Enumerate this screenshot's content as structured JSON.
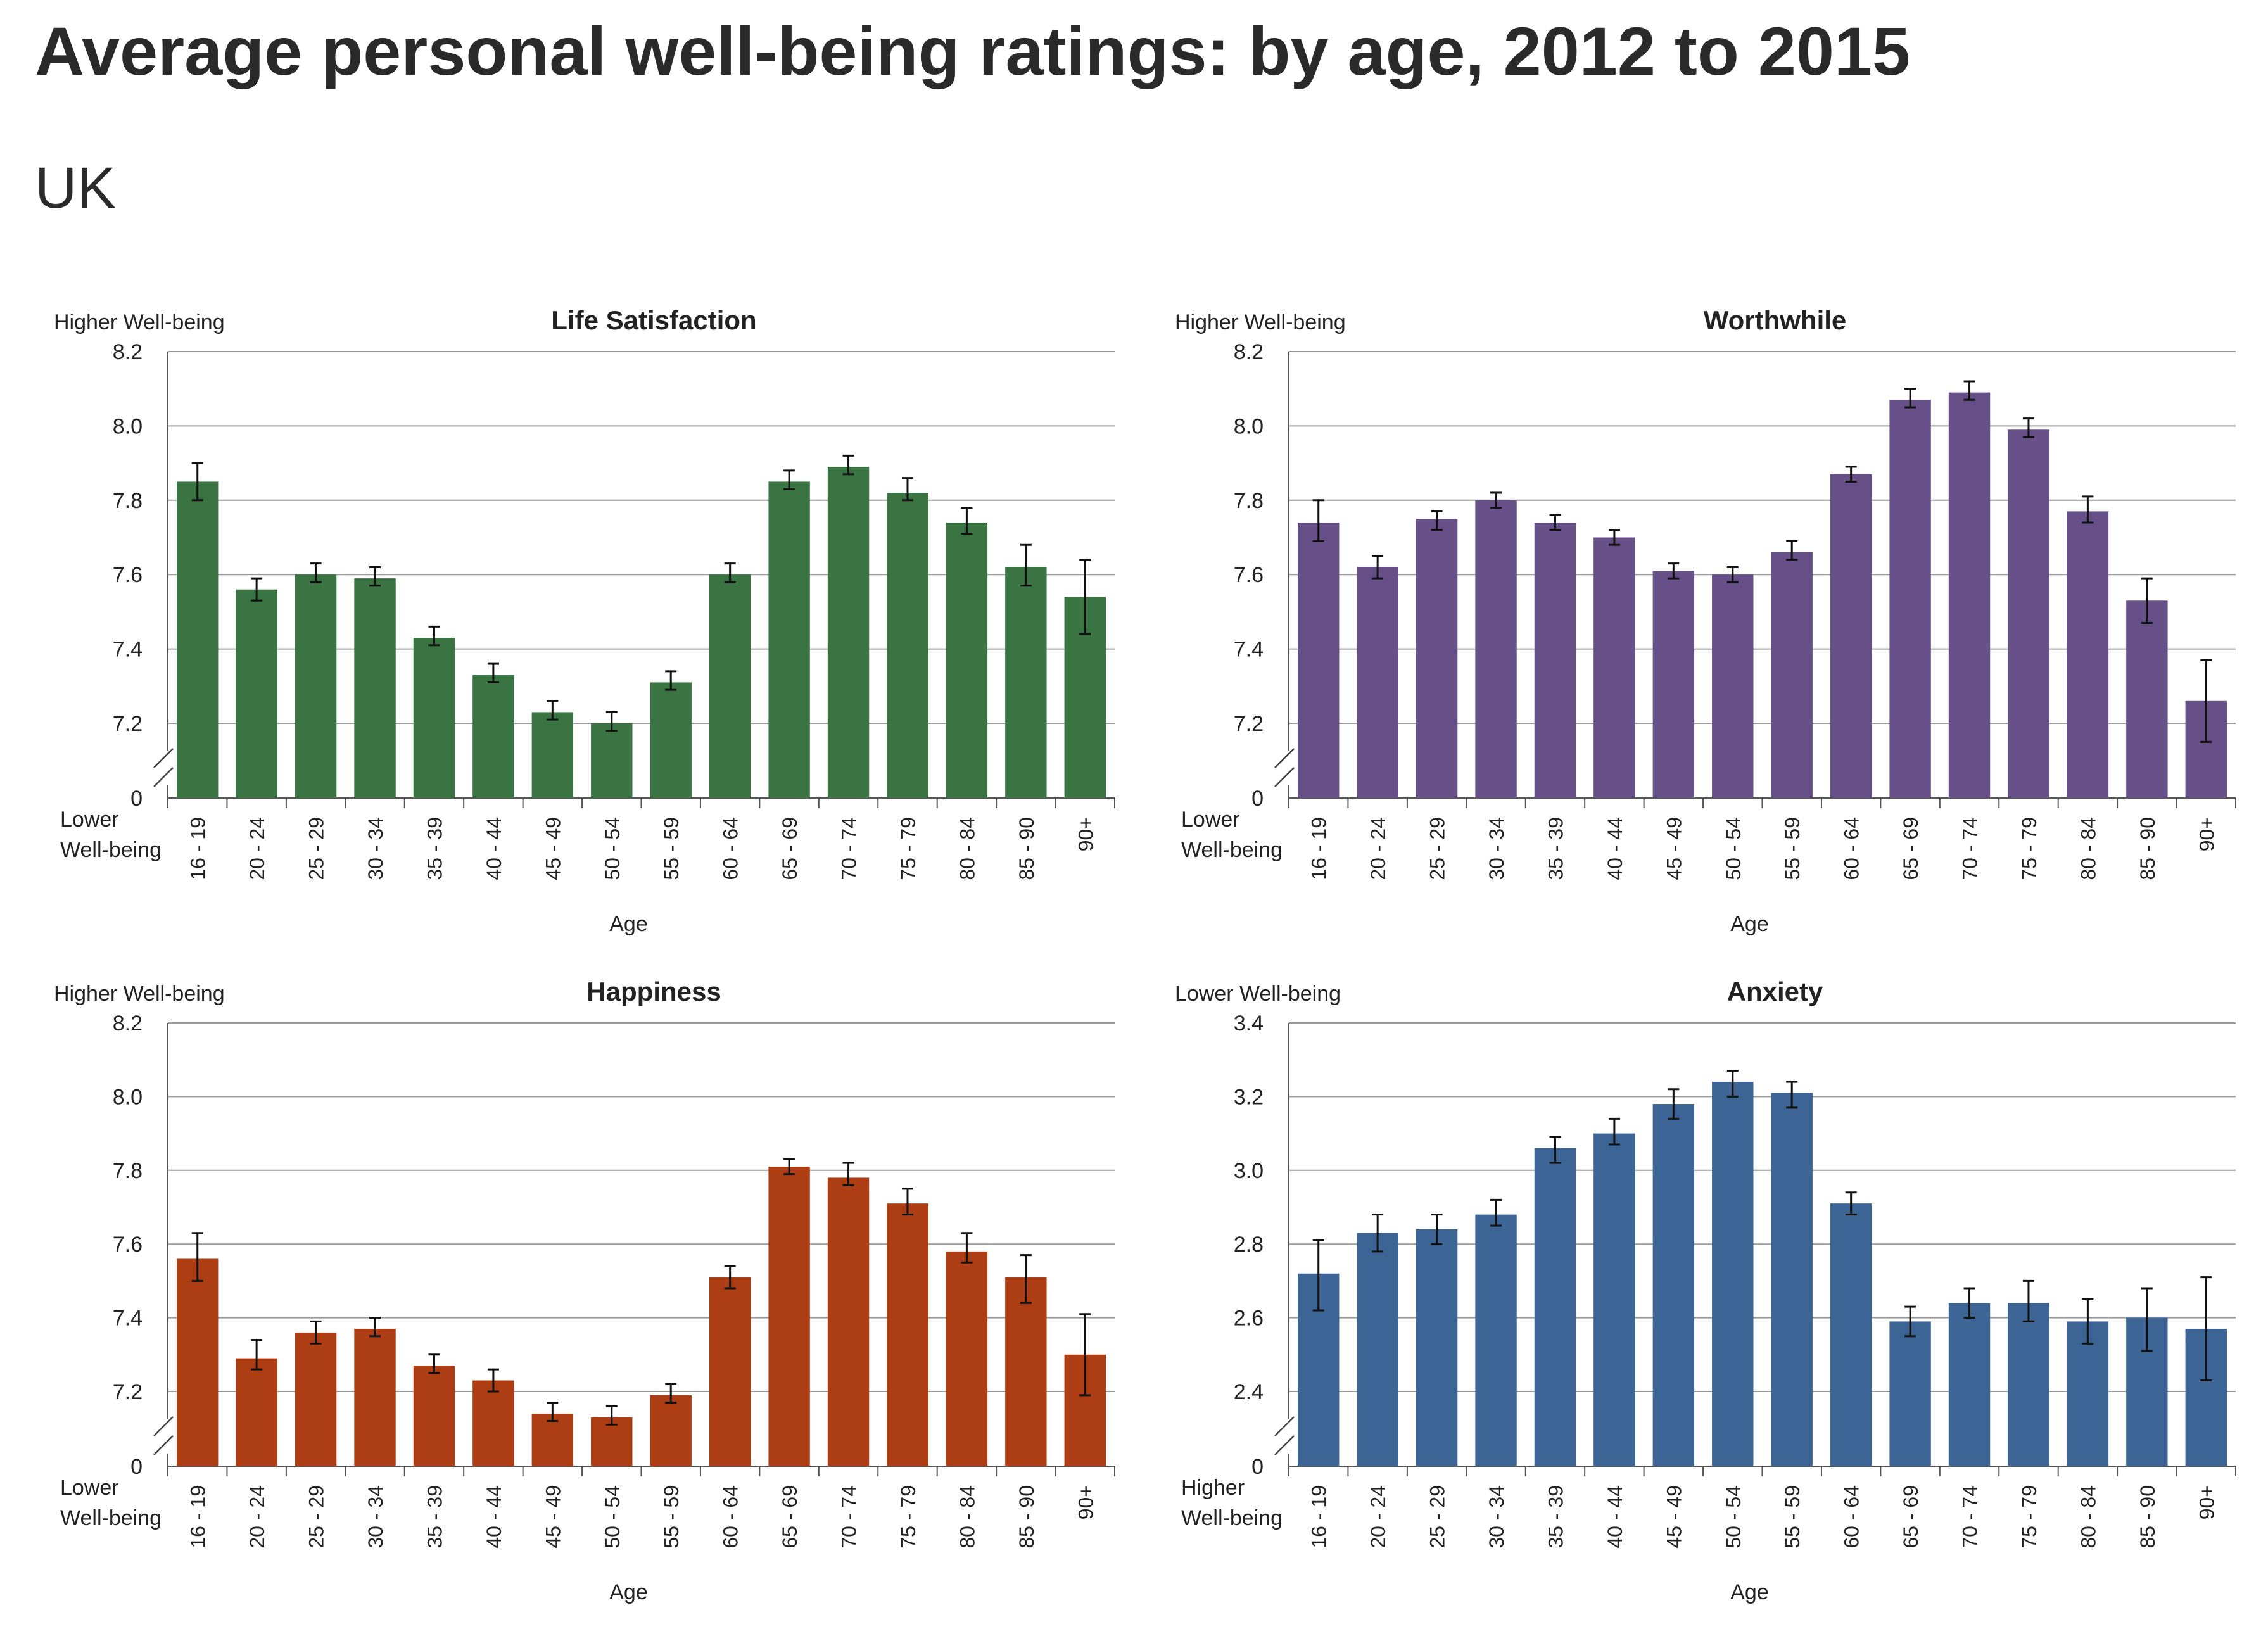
{
  "title": "Average personal well-being ratings: by age, 2012 to 2015",
  "subtitle": "UK",
  "chart_data": [
    {
      "type": "bar",
      "title": "Life Satisfaction",
      "color": "#3a7443",
      "top_label": "Higher Well-being",
      "bottom_label": [
        "Lower",
        "Well-being"
      ],
      "xlabel": "Age",
      "ylim": [
        7.0,
        8.2
      ],
      "yticks": [
        "8.2",
        "8.0",
        "7.8",
        "7.6",
        "7.4",
        "7.2",
        "0"
      ],
      "axis_break": true,
      "categories": [
        "16 - 19",
        "20 - 24",
        "25 - 29",
        "30 - 34",
        "35 - 39",
        "40 - 44",
        "45 - 49",
        "50 - 54",
        "55 - 59",
        "60 - 64",
        "65 - 69",
        "70 - 74",
        "75 - 79",
        "80 - 84",
        "85 - 90",
        "90+"
      ],
      "values": [
        7.85,
        7.56,
        7.6,
        7.59,
        7.43,
        7.33,
        7.23,
        7.2,
        7.31,
        7.6,
        7.85,
        7.89,
        7.82,
        7.74,
        7.62,
        7.54
      ],
      "error_low": [
        7.8,
        7.53,
        7.58,
        7.57,
        7.41,
        7.31,
        7.21,
        7.18,
        7.29,
        7.58,
        7.83,
        7.87,
        7.8,
        7.71,
        7.57,
        7.44
      ],
      "error_high": [
        7.9,
        7.59,
        7.63,
        7.62,
        7.46,
        7.36,
        7.26,
        7.23,
        7.34,
        7.63,
        7.88,
        7.92,
        7.86,
        7.78,
        7.68,
        7.64
      ]
    },
    {
      "type": "bar",
      "title": "Worthwhile",
      "color": "#674f88",
      "top_label": "Higher Well-being",
      "bottom_label": [
        "Lower",
        "Well-being"
      ],
      "xlabel": "Age",
      "ylim": [
        7.0,
        8.2
      ],
      "yticks": [
        "8.2",
        "8.0",
        "7.8",
        "7.6",
        "7.4",
        "7.2",
        "0"
      ],
      "axis_break": true,
      "categories": [
        "16 - 19",
        "20 - 24",
        "25 - 29",
        "30 - 34",
        "35 - 39",
        "40 - 44",
        "45 - 49",
        "50 - 54",
        "55 - 59",
        "60 - 64",
        "65 - 69",
        "70 - 74",
        "75 - 79",
        "80 - 84",
        "85 - 90",
        "90+"
      ],
      "values": [
        7.74,
        7.62,
        7.75,
        7.8,
        7.74,
        7.7,
        7.61,
        7.6,
        7.66,
        7.87,
        8.07,
        8.09,
        7.99,
        7.77,
        7.53,
        7.26
      ],
      "error_low": [
        7.69,
        7.59,
        7.72,
        7.78,
        7.72,
        7.68,
        7.59,
        7.58,
        7.64,
        7.85,
        8.05,
        8.07,
        7.97,
        7.74,
        7.47,
        7.15
      ],
      "error_high": [
        7.8,
        7.65,
        7.77,
        7.82,
        7.76,
        7.72,
        7.63,
        7.62,
        7.69,
        7.89,
        8.1,
        8.12,
        8.02,
        7.81,
        7.59,
        7.37
      ]
    },
    {
      "type": "bar",
      "title": "Happiness",
      "color": "#ad3e14",
      "top_label": "Higher Well-being",
      "bottom_label": [
        "Lower",
        "Well-being"
      ],
      "xlabel": "Age",
      "ylim": [
        7.0,
        8.2
      ],
      "yticks": [
        "8.2",
        "8.0",
        "7.8",
        "7.6",
        "7.4",
        "7.2",
        "0"
      ],
      "axis_break": true,
      "categories": [
        "16 - 19",
        "20 - 24",
        "25 - 29",
        "30 - 34",
        "35 - 39",
        "40 - 44",
        "45 - 49",
        "50 - 54",
        "55 - 59",
        "60 - 64",
        "65 - 69",
        "70 - 74",
        "75 - 79",
        "80 - 84",
        "85 - 90",
        "90+"
      ],
      "values": [
        7.56,
        7.29,
        7.36,
        7.37,
        7.27,
        7.23,
        7.14,
        7.13,
        7.19,
        7.51,
        7.81,
        7.78,
        7.71,
        7.58,
        7.51,
        7.3
      ],
      "error_low": [
        7.5,
        7.26,
        7.33,
        7.35,
        7.25,
        7.2,
        7.12,
        7.11,
        7.17,
        7.48,
        7.79,
        7.76,
        7.68,
        7.55,
        7.44,
        7.19
      ],
      "error_high": [
        7.63,
        7.34,
        7.39,
        7.4,
        7.3,
        7.26,
        7.17,
        7.16,
        7.22,
        7.54,
        7.83,
        7.82,
        7.75,
        7.63,
        7.57,
        7.41
      ]
    },
    {
      "type": "bar",
      "title": "Anxiety",
      "color": "#3c6495",
      "top_label": "Lower Well-being",
      "bottom_label": [
        "Higher",
        "Well-being"
      ],
      "xlabel": "Age",
      "ylim": [
        2.2,
        3.4
      ],
      "yticks": [
        "3.4",
        "3.2",
        "3.0",
        "2.8",
        "2.6",
        "2.4",
        "0"
      ],
      "axis_break": true,
      "categories": [
        "16 - 19",
        "20 - 24",
        "25 - 29",
        "30 - 34",
        "35 - 39",
        "40 - 44",
        "45 - 49",
        "50 - 54",
        "55 - 59",
        "60 - 64",
        "65 - 69",
        "70 - 74",
        "75 - 79",
        "80 - 84",
        "85 - 90",
        "90+"
      ],
      "values": [
        2.72,
        2.83,
        2.84,
        2.88,
        3.06,
        3.1,
        3.18,
        3.24,
        3.21,
        2.91,
        2.59,
        2.64,
        2.64,
        2.59,
        2.6,
        2.57
      ],
      "error_low": [
        2.62,
        2.78,
        2.8,
        2.85,
        3.02,
        3.07,
        3.14,
        3.2,
        3.17,
        2.88,
        2.55,
        2.6,
        2.59,
        2.53,
        2.51,
        2.43
      ],
      "error_high": [
        2.81,
        2.88,
        2.88,
        2.92,
        3.09,
        3.14,
        3.22,
        3.27,
        3.24,
        2.94,
        2.63,
        2.68,
        2.7,
        2.65,
        2.68,
        2.71
      ]
    }
  ]
}
